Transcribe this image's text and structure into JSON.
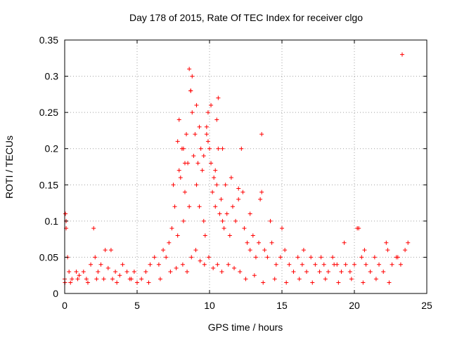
{
  "chart_data": {
    "type": "scatter",
    "title": "Day 178 of 2015, Rate Of TEC Index for receiver clgo",
    "xlabel": "GPS time / hours",
    "ylabel": "ROTI / TECUs",
    "xlim": [
      0,
      25
    ],
    "ylim": [
      0,
      0.35
    ],
    "xticks": [
      0,
      5,
      10,
      15,
      20,
      25
    ],
    "yticks": [
      0,
      0.05,
      0.1,
      0.15,
      0.2,
      0.25,
      0.3,
      0.35
    ],
    "grid": true,
    "marker": "+",
    "color": "#ff0000",
    "series": [
      {
        "x": [
          0.0,
          0.05,
          0.1,
          0.2,
          0.3,
          0.5,
          0.8,
          1.0,
          1.3,
          1.5,
          1.8,
          2.0,
          2.1,
          2.3,
          2.5,
          2.8,
          3.0,
          3.3,
          3.5,
          3.8,
          4.0,
          4.3,
          4.5,
          4.8,
          5.0,
          5.3,
          5.6,
          5.9,
          6.2,
          6.5,
          6.8,
          7.0,
          7.2,
          7.4,
          7.5,
          7.6,
          7.8,
          7.9,
          8.0,
          8.1,
          8.2,
          8.3,
          8.4,
          8.5,
          8.6,
          8.7,
          8.8,
          8.9,
          9.0,
          9.1,
          9.2,
          9.3,
          9.4,
          9.5,
          9.6,
          9.7,
          9.8,
          9.9,
          10.0,
          10.1,
          10.2,
          10.3,
          10.4,
          10.5,
          10.6,
          10.7,
          10.8,
          10.9,
          11.0,
          11.2,
          11.4,
          11.6,
          11.8,
          12.0,
          12.2,
          12.4,
          12.6,
          12.8,
          13.0,
          13.2,
          13.4,
          13.6,
          13.8,
          14.0,
          14.3,
          14.6,
          14.9,
          15.2,
          15.5,
          15.8,
          16.1,
          16.4,
          16.7,
          17.0,
          17.3,
          17.6,
          17.9,
          18.2,
          18.5,
          18.8,
          19.1,
          19.4,
          19.7,
          20.0,
          20.2,
          20.5,
          20.8,
          21.1,
          21.4,
          21.7,
          22.0,
          22.3,
          22.6,
          22.9,
          23.2,
          23.5,
          23.7,
          0.02,
          0.4,
          0.9,
          1.6,
          2.2,
          2.7,
          3.6,
          4.6,
          5.8,
          6.6,
          7.3,
          7.7,
          8.15,
          8.45,
          8.75,
          9.05,
          9.35,
          9.65,
          9.95,
          10.25,
          10.55,
          10.85,
          11.3,
          11.7,
          12.1,
          12.5,
          13.1,
          13.7,
          14.5,
          15.3,
          16.2,
          17.1,
          18.0,
          18.9,
          19.8,
          20.6,
          21.5,
          22.4,
          23.3,
          8.6,
          8.8,
          8.7,
          9.1,
          9.3,
          9.8,
          10.1,
          10.5,
          10.6,
          10.9,
          12.0,
          13.5,
          13.6,
          7.8,
          7.9,
          8.2,
          8.3,
          9.6,
          9.9,
          10.4,
          11.1,
          11.5,
          12.3,
          12.8,
          14.2,
          3.2,
          0.1,
          20.3,
          22.2,
          23.0,
          20.7,
          19.3,
          15.0,
          16.5,
          17.7,
          18.6
        ],
        "y": [
          0.02,
          0.11,
          0.09,
          0.05,
          0.03,
          0.02,
          0.03,
          0.025,
          0.03,
          0.02,
          0.04,
          0.09,
          0.05,
          0.03,
          0.04,
          0.06,
          0.035,
          0.02,
          0.03,
          0.025,
          0.04,
          0.03,
          0.02,
          0.03,
          0.015,
          0.02,
          0.03,
          0.04,
          0.05,
          0.04,
          0.06,
          0.05,
          0.07,
          0.09,
          0.15,
          0.12,
          0.08,
          0.24,
          0.16,
          0.2,
          0.1,
          0.14,
          0.22,
          0.18,
          0.12,
          0.28,
          0.25,
          0.19,
          0.22,
          0.15,
          0.18,
          0.12,
          0.2,
          0.17,
          0.1,
          0.08,
          0.22,
          0.25,
          0.2,
          0.18,
          0.14,
          0.16,
          0.12,
          0.15,
          0.27,
          0.11,
          0.13,
          0.1,
          0.09,
          0.11,
          0.08,
          0.12,
          0.1,
          0.13,
          0.2,
          0.09,
          0.07,
          0.06,
          0.08,
          0.05,
          0.07,
          0.14,
          0.06,
          0.05,
          0.07,
          0.04,
          0.05,
          0.06,
          0.04,
          0.03,
          0.05,
          0.04,
          0.03,
          0.05,
          0.04,
          0.03,
          0.04,
          0.03,
          0.05,
          0.04,
          0.03,
          0.04,
          0.03,
          0.04,
          0.09,
          0.05,
          0.04,
          0.03,
          0.05,
          0.04,
          0.03,
          0.06,
          0.04,
          0.05,
          0.04,
          0.06,
          0.07,
          0.015,
          0.015,
          0.02,
          0.015,
          0.02,
          0.02,
          0.015,
          0.02,
          0.015,
          0.02,
          0.03,
          0.035,
          0.04,
          0.03,
          0.05,
          0.06,
          0.045,
          0.04,
          0.05,
          0.035,
          0.04,
          0.03,
          0.04,
          0.035,
          0.03,
          0.02,
          0.025,
          0.015,
          0.02,
          0.015,
          0.02,
          0.015,
          0.02,
          0.015,
          0.02,
          0.015,
          0.02,
          0.015,
          0.33,
          0.31,
          0.3,
          0.28,
          0.26,
          0.23,
          0.23,
          0.26,
          0.24,
          0.2,
          0.2,
          0.145,
          0.13,
          0.22,
          0.21,
          0.17,
          0.2,
          0.18,
          0.19,
          0.21,
          0.17,
          0.15,
          0.16,
          0.14,
          0.11,
          0.1,
          0.06,
          0.1,
          0.09,
          0.07,
          0.05,
          0.06,
          0.07,
          0.09,
          0.06,
          0.05,
          0.04
        ]
      }
    ]
  }
}
